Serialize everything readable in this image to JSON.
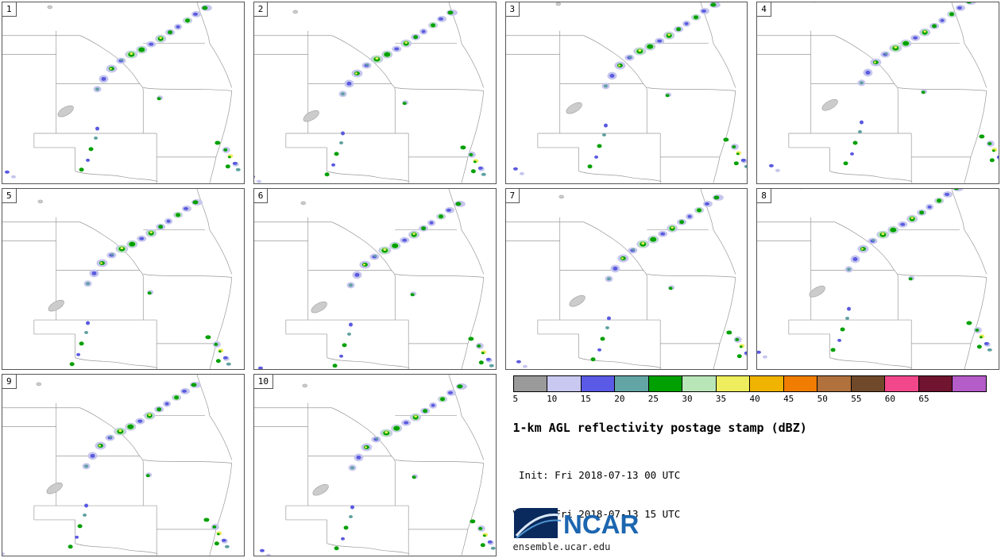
{
  "panels": [
    {
      "label": "1"
    },
    {
      "label": "2"
    },
    {
      "label": "3"
    },
    {
      "label": "4"
    },
    {
      "label": "5"
    },
    {
      "label": "6"
    },
    {
      "label": "7"
    },
    {
      "label": "8"
    },
    {
      "label": "9"
    },
    {
      "label": "10"
    }
  ],
  "legend": {
    "title": "1-km AGL reflectivity postage stamp (dBZ)",
    "init_line": " Init: Fri 2018-07-13 00 UTC",
    "valid_line": "Valid: Fri 2018-07-13 15 UTC",
    "logo_text": "NCAR",
    "footer": "ensemble.ucar.edu",
    "colorbar": {
      "unit": "dBZ",
      "ticks": [
        "5",
        "10",
        "15",
        "20",
        "25",
        "30",
        "35",
        "40",
        "45",
        "50",
        "55",
        "60",
        "65"
      ],
      "colors": [
        "#9a9a9a",
        "#c8c8f0",
        "#5a5ae6",
        "#63a5a5",
        "#00a000",
        "#b9e6b9",
        "#eded5e",
        "#f0b400",
        "#f07d00",
        "#b0713d",
        "#70482a",
        "#f2478a",
        "#701430",
        "#b45cc8"
      ]
    }
  }
}
